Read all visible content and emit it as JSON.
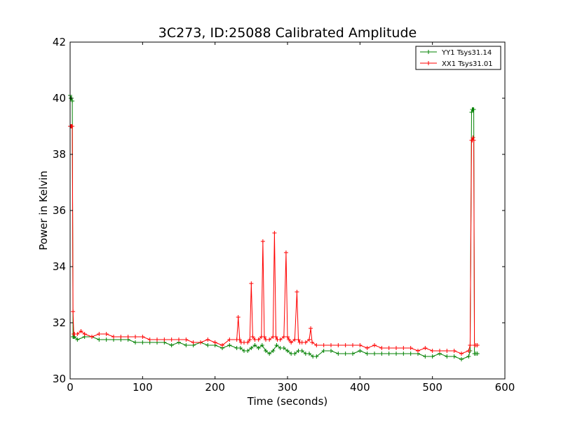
{
  "chart_data": {
    "type": "line",
    "title": "3C273, ID:25088 Calibrated Amplitude",
    "xlabel": "Time (seconds)",
    "ylabel": "Power in Kelvin",
    "xlim": [
      0,
      600
    ],
    "ylim": [
      30,
      42
    ],
    "xticks": [
      0,
      100,
      200,
      300,
      400,
      500,
      600
    ],
    "yticks": [
      30,
      32,
      34,
      36,
      38,
      40,
      42
    ],
    "xtick_labels": [
      "0",
      "100",
      "200",
      "300",
      "400",
      "500",
      "600"
    ],
    "ytick_labels": [
      "30",
      "32",
      "34",
      "36",
      "38",
      "40",
      "42"
    ],
    "grid": false,
    "legend_position": "top-right",
    "marker": "+",
    "series": [
      {
        "name": "YY1 Tsys31.14",
        "color": "#008000",
        "x": [
          0,
          1,
          2,
          3,
          4,
          5,
          6,
          10,
          20,
          30,
          40,
          50,
          60,
          70,
          80,
          90,
          100,
          110,
          120,
          130,
          140,
          150,
          160,
          170,
          180,
          190,
          200,
          210,
          220,
          230,
          235,
          240,
          245,
          250,
          255,
          260,
          265,
          270,
          275,
          280,
          285,
          290,
          295,
          300,
          305,
          310,
          315,
          320,
          325,
          330,
          335,
          340,
          350,
          360,
          370,
          380,
          390,
          400,
          410,
          420,
          430,
          440,
          450,
          460,
          470,
          480,
          490,
          500,
          510,
          520,
          530,
          540,
          550,
          552,
          554,
          555,
          556,
          557,
          558,
          560,
          562
        ],
        "y": [
          40.1,
          40.0,
          40.0,
          39.9,
          31.5,
          31.5,
          31.5,
          31.4,
          31.5,
          31.5,
          31.4,
          31.4,
          31.4,
          31.4,
          31.4,
          31.3,
          31.3,
          31.3,
          31.3,
          31.3,
          31.2,
          31.3,
          31.2,
          31.2,
          31.3,
          31.2,
          31.2,
          31.1,
          31.2,
          31.1,
          31.1,
          31.0,
          31.0,
          31.1,
          31.2,
          31.1,
          31.2,
          31.0,
          30.9,
          31.0,
          31.2,
          31.1,
          31.1,
          31.0,
          30.9,
          30.9,
          31.0,
          31.0,
          30.9,
          30.9,
          30.8,
          30.8,
          31.0,
          31.0,
          30.9,
          30.9,
          30.9,
          31.0,
          30.9,
          30.9,
          30.9,
          30.9,
          30.9,
          30.9,
          30.9,
          30.9,
          30.8,
          30.8,
          30.9,
          30.8,
          30.8,
          30.7,
          30.8,
          31.0,
          39.5,
          39.6,
          39.6,
          39.6,
          30.9,
          30.9,
          30.9
        ]
      },
      {
        "name": "XX1 Tsys31.01",
        "color": "#ff0000",
        "x": [
          0,
          1,
          2,
          3,
          4,
          5,
          6,
          10,
          15,
          20,
          30,
          40,
          50,
          60,
          70,
          80,
          90,
          100,
          110,
          120,
          130,
          140,
          150,
          160,
          170,
          180,
          190,
          200,
          210,
          220,
          230,
          232,
          234,
          236,
          240,
          245,
          248,
          250,
          252,
          255,
          260,
          264,
          266,
          268,
          270,
          275,
          280,
          282,
          284,
          286,
          290,
          295,
          298,
          300,
          302,
          305,
          310,
          313,
          315,
          317,
          320,
          325,
          330,
          332,
          334,
          340,
          350,
          360,
          370,
          380,
          390,
          400,
          410,
          420,
          430,
          440,
          450,
          460,
          470,
          480,
          490,
          500,
          510,
          520,
          530,
          540,
          550,
          552,
          554,
          555,
          556,
          557,
          558,
          560,
          562
        ],
        "y": [
          39.0,
          39.0,
          39.0,
          39.0,
          32.4,
          31.6,
          31.6,
          31.6,
          31.7,
          31.6,
          31.5,
          31.6,
          31.6,
          31.5,
          31.5,
          31.5,
          31.5,
          31.5,
          31.4,
          31.4,
          31.4,
          31.4,
          31.4,
          31.4,
          31.3,
          31.3,
          31.4,
          31.3,
          31.2,
          31.4,
          31.4,
          32.2,
          31.4,
          31.3,
          31.3,
          31.3,
          31.4,
          33.4,
          31.5,
          31.4,
          31.4,
          31.5,
          34.9,
          31.5,
          31.4,
          31.4,
          31.5,
          35.2,
          31.5,
          31.4,
          31.4,
          31.5,
          34.5,
          31.5,
          31.4,
          31.3,
          31.4,
          33.1,
          31.4,
          31.3,
          31.3,
          31.3,
          31.4,
          31.8,
          31.3,
          31.2,
          31.2,
          31.2,
          31.2,
          31.2,
          31.2,
          31.2,
          31.1,
          31.2,
          31.1,
          31.1,
          31.1,
          31.1,
          31.1,
          31.0,
          31.1,
          31.0,
          31.0,
          31.0,
          31.0,
          30.9,
          31.0,
          31.2,
          38.5,
          38.5,
          38.6,
          38.5,
          31.2,
          31.2,
          31.2
        ]
      }
    ]
  }
}
